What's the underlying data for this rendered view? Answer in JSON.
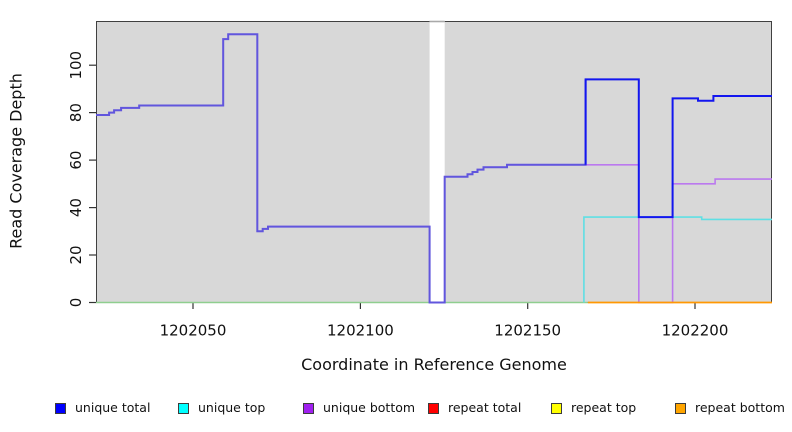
{
  "figure": {
    "background": "#ffffff",
    "plot_background": "#d8d8d8",
    "frame_color": "#404040",
    "gap_cap_color": "#a9a9a9",
    "text_color": "#111111"
  },
  "chart_data": {
    "type": "line",
    "step": true,
    "title": "",
    "xlabel": "Coordinate in Reference Genome",
    "ylabel": "Read Coverage Depth",
    "x_ticks": [
      1202050,
      1202100,
      1202150,
      1202200
    ],
    "y_ticks": [
      0,
      20,
      40,
      60,
      80,
      100
    ],
    "x_range": [
      1202021,
      1202223
    ],
    "y_range": [
      0,
      118.4
    ],
    "grid": false,
    "legend_position": "bottom",
    "no_data_gap": {
      "from": 1202120.7,
      "to": 1202125.2
    },
    "series": [
      {
        "name": "unique total",
        "color": "#0000ff",
        "points": [
          [
            1202021,
            79
          ],
          [
            1202024.9,
            79
          ],
          [
            1202024.9,
            80
          ],
          [
            1202026.4,
            80
          ],
          [
            1202026.4,
            81
          ],
          [
            1202028.5,
            81
          ],
          [
            1202028.5,
            82
          ],
          [
            1202033.9,
            82
          ],
          [
            1202033.9,
            83
          ],
          [
            1202059,
            83
          ],
          [
            1202059,
            111
          ],
          [
            1202060.5,
            111
          ],
          [
            1202060.5,
            113
          ],
          [
            1202069.2,
            113
          ],
          [
            1202069.2,
            30
          ],
          [
            1202070.8,
            30
          ],
          [
            1202070.8,
            31
          ],
          [
            1202072.4,
            31
          ],
          [
            1202072.4,
            32
          ],
          [
            1202120.7,
            32
          ],
          [
            1202120.7,
            0
          ],
          [
            1202125.2,
            0
          ],
          [
            1202125.2,
            53
          ],
          [
            1202132,
            53
          ],
          [
            1202132,
            54
          ],
          [
            1202133.5,
            54
          ],
          [
            1202133.5,
            55
          ],
          [
            1202135,
            55
          ],
          [
            1202135,
            56
          ],
          [
            1202136.8,
            56
          ],
          [
            1202136.8,
            57
          ],
          [
            1202143.8,
            57
          ],
          [
            1202143.8,
            58
          ],
          [
            1202167.3,
            58
          ],
          [
            1202167.3,
            94
          ],
          [
            1202183.2,
            94
          ],
          [
            1202183.2,
            36
          ],
          [
            1202193.3,
            36
          ],
          [
            1202193.3,
            86
          ],
          [
            1202200.9,
            86
          ],
          [
            1202200.9,
            85
          ],
          [
            1202205.5,
            85
          ],
          [
            1202205.5,
            87
          ],
          [
            1202223,
            87
          ]
        ]
      },
      {
        "name": "unique top",
        "color": "#00ffff",
        "points": [
          [
            1202021,
            0
          ],
          [
            1202166.8,
            0
          ],
          [
            1202166.8,
            36
          ],
          [
            1202202,
            36
          ],
          [
            1202202,
            35
          ],
          [
            1202223,
            35
          ]
        ]
      },
      {
        "name": "unique bottom",
        "color": "#a020f0",
        "points": [
          [
            1202021,
            79
          ],
          [
            1202024.9,
            79
          ],
          [
            1202024.9,
            80
          ],
          [
            1202026.4,
            80
          ],
          [
            1202026.4,
            81
          ],
          [
            1202028.5,
            81
          ],
          [
            1202028.5,
            82
          ],
          [
            1202033.9,
            82
          ],
          [
            1202033.9,
            83
          ],
          [
            1202059,
            83
          ],
          [
            1202059,
            111
          ],
          [
            1202060.5,
            111
          ],
          [
            1202060.5,
            113
          ],
          [
            1202069.2,
            113
          ],
          [
            1202069.2,
            30
          ],
          [
            1202070.8,
            30
          ],
          [
            1202070.8,
            31
          ],
          [
            1202072.4,
            31
          ],
          [
            1202072.4,
            32
          ],
          [
            1202120.7,
            32
          ],
          [
            1202120.7,
            0
          ],
          [
            1202125.2,
            0
          ],
          [
            1202125.2,
            53
          ],
          [
            1202132,
            53
          ],
          [
            1202132,
            54
          ],
          [
            1202133.5,
            54
          ],
          [
            1202133.5,
            55
          ],
          [
            1202135,
            55
          ],
          [
            1202135,
            56
          ],
          [
            1202136.8,
            56
          ],
          [
            1202136.8,
            57
          ],
          [
            1202143.8,
            57
          ],
          [
            1202143.8,
            58
          ],
          [
            1202183.2,
            58
          ],
          [
            1202183.2,
            0
          ],
          [
            1202193.3,
            0
          ],
          [
            1202193.3,
            50
          ],
          [
            1202206,
            50
          ],
          [
            1202206,
            52
          ],
          [
            1202223,
            52
          ]
        ]
      },
      {
        "name": "repeat total",
        "color": "#ff0000",
        "points": [
          [
            1202021,
            0
          ],
          [
            1202223,
            0
          ]
        ]
      },
      {
        "name": "repeat top",
        "color": "#ffff00",
        "points": [
          [
            1202021,
            0
          ],
          [
            1202168,
            0
          ],
          [
            1202223,
            0
          ]
        ]
      },
      {
        "name": "repeat bottom",
        "color": "#ffa500",
        "points": [
          [
            1202021,
            0
          ],
          [
            1202168,
            0
          ],
          [
            1202223,
            0
          ]
        ]
      }
    ],
    "render_lines": [
      {
        "series": "repeat top",
        "color": "#8fce8f",
        "width": 1.4,
        "clip": [
          1202021,
          1202168
        ],
        "note": "cyan+yellow overlap at zero renders pale green"
      },
      {
        "series": "unique bottom",
        "color": "#bb79ef",
        "width": 1.6,
        "clip": [
          1202021,
          1202223
        ]
      },
      {
        "series": "repeat bottom",
        "color": "#ff9803",
        "width": 1.8,
        "clip": [
          1202168,
          1202223
        ]
      },
      {
        "series": "unique top",
        "color": "#5fdfe4",
        "width": 1.6,
        "clip": [
          1202166.8,
          1202223
        ]
      },
      {
        "series": "unique total",
        "color": "#6156dd",
        "width": 2.0,
        "clip": [
          1202021,
          1202167.3
        ],
        "note": "blue+purple overlap renders slate blue"
      },
      {
        "series": "unique total",
        "color": "#1316ef",
        "width": 2.0,
        "clip": [
          1202167.3,
          1202223
        ]
      }
    ]
  },
  "legend": {
    "items": [
      {
        "label": "unique total",
        "color": "#0000ff"
      },
      {
        "label": "unique top",
        "color": "#00ffff"
      },
      {
        "label": "unique bottom",
        "color": "#a020f0"
      },
      {
        "label": "repeat total",
        "color": "#ff0000"
      },
      {
        "label": "repeat top",
        "color": "#ffff00"
      },
      {
        "label": "repeat bottom",
        "color": "#ffa500"
      }
    ]
  }
}
